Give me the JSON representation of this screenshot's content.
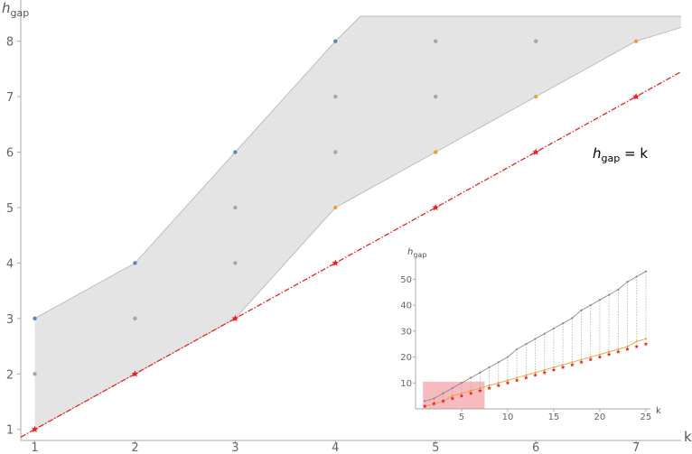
{
  "chart_data": [
    {
      "type": "scatter",
      "xlabel": "k",
      "ylabel": "h",
      "ylabel_sub": "gap",
      "xlim": [
        0.86,
        7.45
      ],
      "ylim": [
        0.8,
        8.45
      ],
      "xticks": [
        1,
        2,
        3,
        4,
        5,
        6,
        7
      ],
      "yticks": [
        1,
        2,
        3,
        4,
        5,
        6,
        7,
        8
      ],
      "region": {
        "upper": [
          [
            1,
            3
          ],
          [
            2,
            4
          ],
          [
            3,
            6
          ],
          [
            4,
            8
          ],
          [
            4.25,
            8.45
          ],
          [
            7.45,
            8.45
          ]
        ],
        "lower": [
          [
            1,
            1
          ],
          [
            2,
            2
          ],
          [
            3,
            3
          ],
          [
            4,
            5
          ],
          [
            5,
            6
          ],
          [
            6,
            7
          ],
          [
            7,
            8
          ],
          [
            7.45,
            8.25
          ]
        ]
      },
      "series": [
        {
          "color": "#5b84c4",
          "points": [
            [
              1,
              3
            ],
            [
              2,
              4
            ],
            [
              3,
              6
            ],
            [
              4,
              8
            ]
          ]
        },
        {
          "color": "#a6a6a6",
          "points": [
            [
              1,
              2
            ],
            [
              2,
              3
            ],
            [
              3,
              5
            ],
            [
              3,
              4
            ],
            [
              4,
              7
            ],
            [
              4,
              6
            ],
            [
              5,
              8
            ],
            [
              5,
              7
            ],
            [
              6,
              8
            ]
          ]
        },
        {
          "color": "#e8a33a",
          "points": [
            [
              4,
              5
            ],
            [
              5,
              6
            ],
            [
              6,
              7
            ],
            [
              7,
              8
            ]
          ]
        },
        {
          "color": "#e8231f",
          "marker": "star",
          "points": [
            [
              1,
              1
            ],
            [
              2,
              2
            ],
            [
              3,
              3
            ],
            [
              4,
              4
            ],
            [
              5,
              5
            ],
            [
              6,
              6
            ],
            [
              7,
              7
            ]
          ]
        }
      ],
      "reference_line": {
        "slope": 1,
        "intercept": 0,
        "color": "#e8231f",
        "style": "dashdot"
      },
      "annotation": {
        "main": "h",
        "sub": "gap",
        "rest": " = k"
      }
    },
    {
      "type": "scatter",
      "xlabel": "k",
      "ylabel": "h",
      "ylabel_sub": "gap",
      "xlim": [
        0,
        25.5
      ],
      "ylim": [
        0,
        55
      ],
      "xticks": [
        5,
        10,
        15,
        20,
        25
      ],
      "yticks": [
        10,
        20,
        30,
        40,
        50
      ],
      "highlight_box": {
        "x": [
          0.8,
          7.5
        ],
        "y": [
          0,
          10.5
        ]
      },
      "upper_values": [
        3,
        4,
        6,
        8,
        10,
        12,
        14,
        16,
        18,
        20,
        23,
        25,
        27,
        29,
        31,
        33,
        35,
        38,
        40,
        42,
        44,
        46,
        49,
        51,
        53
      ],
      "lower_values": [
        1,
        2,
        3,
        5,
        6,
        7,
        8,
        9,
        10,
        11,
        12,
        13,
        14,
        15,
        16,
        17,
        18,
        19,
        20,
        21,
        22,
        23,
        24,
        26,
        27
      ],
      "star_values": [
        1,
        2,
        3,
        4,
        5,
        6,
        7,
        8,
        9,
        10,
        11,
        12,
        13,
        14,
        15,
        16,
        17,
        18,
        19,
        20,
        21,
        22,
        23,
        24,
        25
      ],
      "colors": {
        "upper": "#8c8c8c",
        "lower": "#e8a33a",
        "stars": "#e8231f",
        "box": "#f4a3a8"
      }
    }
  ]
}
